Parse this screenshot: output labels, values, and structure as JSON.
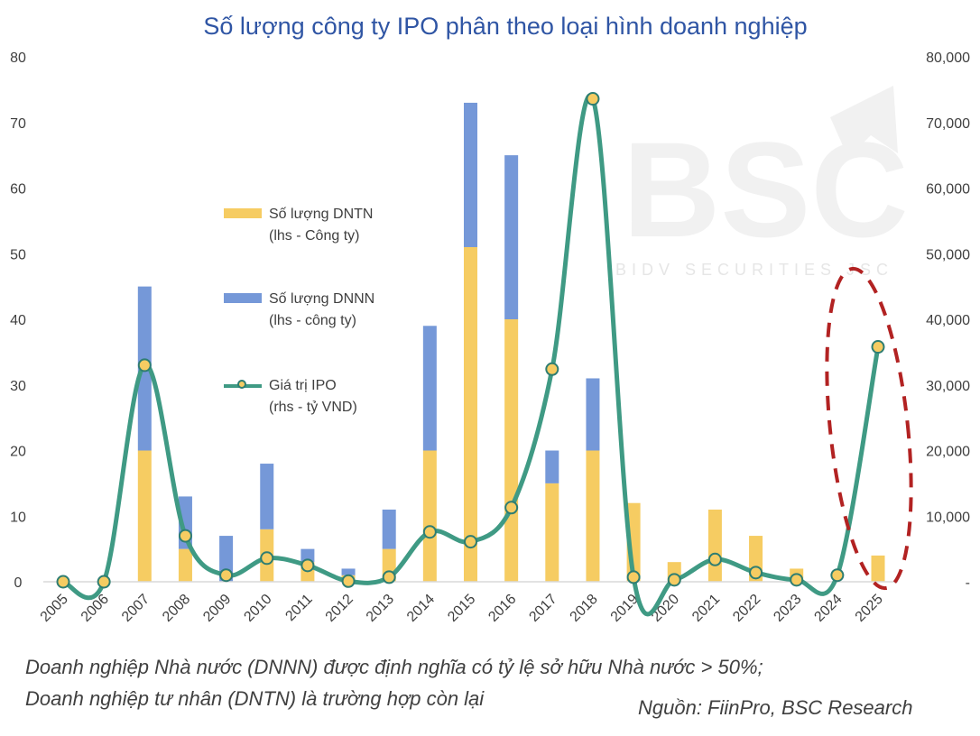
{
  "chart_data": {
    "type": "bar+line",
    "title": "Số lượng công ty IPO phân theo loại hình doanh nghiệp",
    "categories": [
      "2005",
      "2006",
      "2007",
      "2008",
      "2009",
      "2010",
      "2011",
      "2012",
      "2013",
      "2014",
      "2015",
      "2016",
      "2017",
      "2018",
      "2019",
      "2020",
      "2021",
      "2022",
      "2023",
      "2024",
      "2025"
    ],
    "series": [
      {
        "name": "Số lượng DNTN",
        "name_line2": "(lhs - Công ty)",
        "type": "stacked-bar",
        "axis": "left",
        "color": "#f6cc62",
        "values": [
          0,
          0,
          20,
          5,
          0,
          8,
          3,
          1,
          5,
          20,
          51,
          40,
          15,
          20,
          12,
          3,
          11,
          7,
          2,
          0,
          4
        ]
      },
      {
        "name": "Số lượng DNNN",
        "name_line2": "(lhs - công ty)",
        "type": "stacked-bar",
        "axis": "left",
        "color": "#7598d8",
        "values": [
          0,
          0,
          25,
          8,
          7,
          10,
          2,
          1,
          6,
          19,
          22,
          25,
          5,
          11,
          0,
          0,
          0,
          0,
          0,
          0,
          0
        ]
      },
      {
        "name": "Giá trị IPO",
        "name_line2": "(rhs - tỷ VND)",
        "type": "smooth-line",
        "axis": "right",
        "color": "#3f9a84",
        "marker_color": "#f6cc62",
        "values": [
          0,
          0,
          33000,
          7000,
          1000,
          3600,
          2500,
          100,
          700,
          7600,
          6100,
          11300,
          32400,
          73600,
          700,
          300,
          3400,
          1400,
          300,
          1000,
          35800
        ]
      }
    ],
    "left_axis": {
      "ylim": [
        0,
        80
      ],
      "ticks": [
        "0",
        "10",
        "20",
        "30",
        "40",
        "50",
        "60",
        "70",
        "80"
      ]
    },
    "right_axis": {
      "ylim": [
        0,
        80000
      ],
      "ticks": [
        "-",
        "10,000",
        "20,000",
        "30,000",
        "40,000",
        "50,000",
        "60,000",
        "70,000",
        "80,000"
      ]
    },
    "legend": "inside-left",
    "highlight": {
      "category": "2025",
      "shape": "dashed-ellipse",
      "color": "#b22222"
    },
    "grid": false
  },
  "notes": {
    "line1": "Doanh nghiệp Nhà nước (DNNN) được định nghĩa có tỷ lệ sở hữu Nhà nước > 50%;",
    "line2": "Doanh nghiệp tư nhân (DNTN) là trường hợp còn lại",
    "source": "Nguồn: FiinPro, BSC Research"
  },
  "watermark": {
    "logo": "BSC",
    "tagline": "BIDV SECURITIES JSC"
  }
}
